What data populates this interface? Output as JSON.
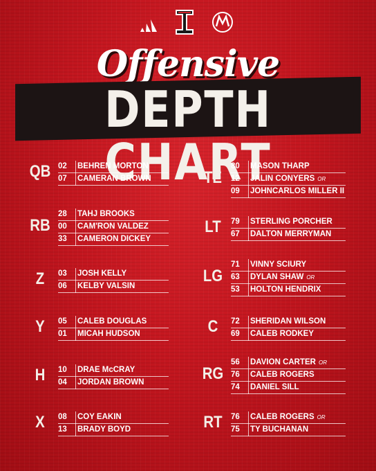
{
  "title": {
    "script": "Offensive",
    "main": "DEPTH CHART"
  },
  "logos": [
    "adidas-logo",
    "texas-tech-double-t-logo",
    "mh-logo"
  ],
  "colors": {
    "background": "#c4161f",
    "band": "#1c1414",
    "text": "#ffffff"
  },
  "left_column": [
    {
      "position": "QB",
      "players": [
        {
          "number": "02",
          "name": "BEHREN MORTON",
          "or": ""
        },
        {
          "number": "07",
          "name": "CAMERAN BROWN",
          "or": ""
        }
      ]
    },
    {
      "position": "RB",
      "players": [
        {
          "number": "28",
          "name": "TAHJ BROOKS",
          "or": ""
        },
        {
          "number": "00",
          "name": "CAM'RON VALDEZ",
          "or": ""
        },
        {
          "number": "33",
          "name": "CAMERON DICKEY",
          "or": ""
        }
      ]
    },
    {
      "position": "Z",
      "players": [
        {
          "number": "03",
          "name": "JOSH KELLY",
          "or": ""
        },
        {
          "number": "06",
          "name": "KELBY VALSIN",
          "or": ""
        }
      ]
    },
    {
      "position": "Y",
      "players": [
        {
          "number": "05",
          "name": "CALEB DOUGLAS",
          "or": ""
        },
        {
          "number": "01",
          "name": "MICAH HUDSON",
          "or": ""
        }
      ]
    },
    {
      "position": "H",
      "players": [
        {
          "number": "10",
          "name": "DRAE McCRAY",
          "or": ""
        },
        {
          "number": "04",
          "name": "JORDAN BROWN",
          "or": ""
        }
      ]
    },
    {
      "position": "X",
      "players": [
        {
          "number": "08",
          "name": "COY EAKIN",
          "or": ""
        },
        {
          "number": "13",
          "name": "BRADY BOYD",
          "or": ""
        }
      ]
    }
  ],
  "right_column": [
    {
      "position": "TE",
      "players": [
        {
          "number": "80",
          "name": "MASON THARP",
          "or": ""
        },
        {
          "number": "12",
          "name": "JALIN CONYERS",
          "or": "OR"
        },
        {
          "number": "09",
          "name": "JOHNCARLOS MILLER II",
          "or": ""
        }
      ]
    },
    {
      "position": "LT",
      "players": [
        {
          "number": "79",
          "name": "STERLING PORCHER",
          "or": ""
        },
        {
          "number": "67",
          "name": "DALTON MERRYMAN",
          "or": ""
        }
      ]
    },
    {
      "position": "LG",
      "players": [
        {
          "number": "71",
          "name": "VINNY SCIURY",
          "or": ""
        },
        {
          "number": "63",
          "name": "DYLAN SHAW",
          "or": "OR"
        },
        {
          "number": "53",
          "name": "HOLTON HENDRIX",
          "or": ""
        }
      ]
    },
    {
      "position": "C",
      "players": [
        {
          "number": "72",
          "name": "SHERIDAN WILSON",
          "or": ""
        },
        {
          "number": "69",
          "name": "CALEB RODKEY",
          "or": ""
        }
      ]
    },
    {
      "position": "RG",
      "players": [
        {
          "number": "56",
          "name": "DAVION CARTER",
          "or": "OR"
        },
        {
          "number": "76",
          "name": "CALEB ROGERS",
          "or": ""
        },
        {
          "number": "74",
          "name": "DANIEL SILL",
          "or": ""
        }
      ]
    },
    {
      "position": "RT",
      "players": [
        {
          "number": "76",
          "name": "CALEB ROGERS",
          "or": "OR"
        },
        {
          "number": "75",
          "name": "TY BUCHANAN",
          "or": ""
        }
      ]
    }
  ]
}
